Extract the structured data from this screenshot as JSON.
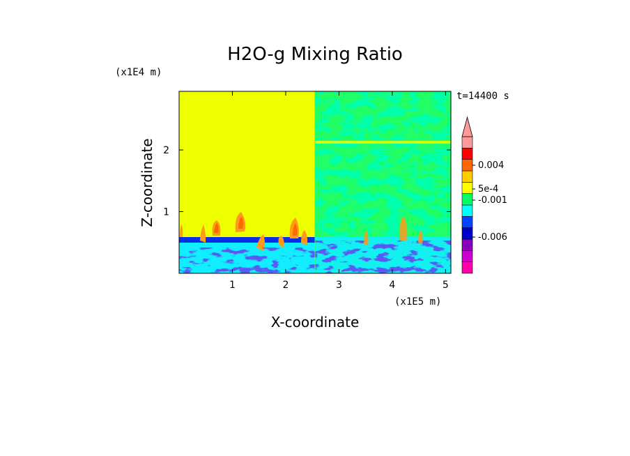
{
  "chart_data": {
    "type": "heatmap",
    "title": "H2O-g Mixing Ratio",
    "xlabel": "X-coordinate",
    "ylabel": "Z-coordinate",
    "x_unit": "(x1E5 m)",
    "y_unit": "(x1E4 m)",
    "time_label": "t=14400 s",
    "xlim": [
      0,
      5.1
    ],
    "ylim": [
      0,
      2.95
    ],
    "x_ticks": [
      "1",
      "2",
      "3",
      "4",
      "5"
    ],
    "x_tick_values": [
      1,
      2,
      3,
      4,
      5
    ],
    "y_ticks": [
      "1",
      "2"
    ],
    "y_tick_values": [
      1,
      2
    ],
    "colorbar": {
      "colors": [
        "#ff00aa",
        "#cc00cc",
        "#8800bb",
        "#0000cc",
        "#0044ff",
        "#00ffff",
        "#00ff66",
        "#ffff00",
        "#ffcc00",
        "#ff6600",
        "#ff0000",
        "#ff9999"
      ],
      "labels": [
        "0.004",
        "5e-4",
        "-0.001",
        "-0.006"
      ],
      "extend": "max"
    },
    "regions": [
      {
        "name": "left upper domain",
        "x": [
          0,
          2.55
        ],
        "z": [
          0.6,
          2.95
        ],
        "level": "yellow"
      },
      {
        "name": "left boundary layer",
        "x": [
          0,
          2.55
        ],
        "z": [
          0,
          0.55
        ],
        "level": "cyan-blue"
      },
      {
        "name": "right domain",
        "x": [
          2.55,
          5.1
        ],
        "z": [
          0,
          2.95
        ],
        "level": "green-yellow mix"
      }
    ]
  }
}
